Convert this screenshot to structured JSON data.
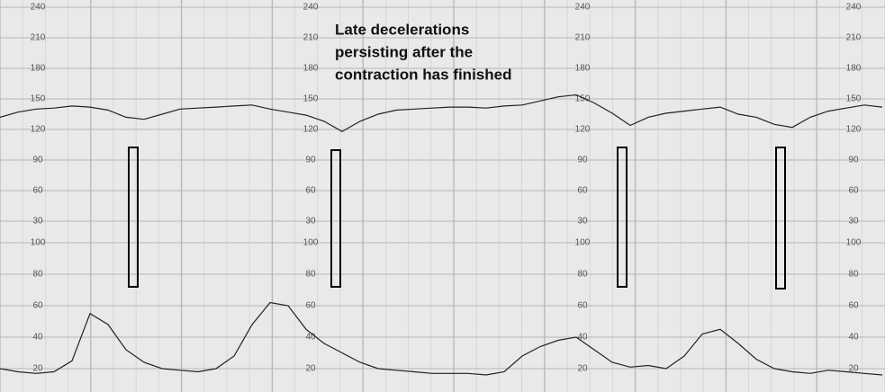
{
  "annotation": [
    "Late decelerations",
    "persisting after the",
    "contraction has finished"
  ],
  "chart_data": [
    {
      "type": "line",
      "color": "#222222",
      "values": [
        132,
        137,
        140,
        141,
        143,
        142,
        139,
        132,
        130,
        135,
        140,
        141,
        142,
        143,
        144,
        140,
        137,
        134,
        128,
        118,
        128,
        135,
        139,
        140,
        141,
        142,
        142,
        141,
        143,
        144,
        148,
        152,
        154,
        146,
        136,
        124,
        132,
        136,
        138,
        140,
        142,
        135,
        132,
        125,
        122,
        132,
        138,
        141,
        144,
        142
      ],
      "ylim": [
        30,
        240
      ],
      "yticks": [
        30,
        60,
        90,
        120,
        150,
        180,
        210,
        240
      ],
      "grid": true
    },
    {
      "type": "line",
      "color": "#222222",
      "values": [
        20,
        18,
        17,
        18,
        25,
        55,
        48,
        32,
        24,
        20,
        19,
        18,
        20,
        28,
        48,
        62,
        60,
        45,
        36,
        30,
        24,
        20,
        19,
        18,
        17,
        17,
        17,
        16,
        18,
        28,
        34,
        38,
        40,
        32,
        24,
        21,
        22,
        20,
        28,
        42,
        45,
        36,
        26,
        20,
        18,
        17,
        19,
        18,
        17,
        16
      ],
      "ylim": [
        10,
        100
      ],
      "yticks": [
        20,
        40,
        60,
        80,
        100
      ],
      "grid": true
    }
  ]
}
